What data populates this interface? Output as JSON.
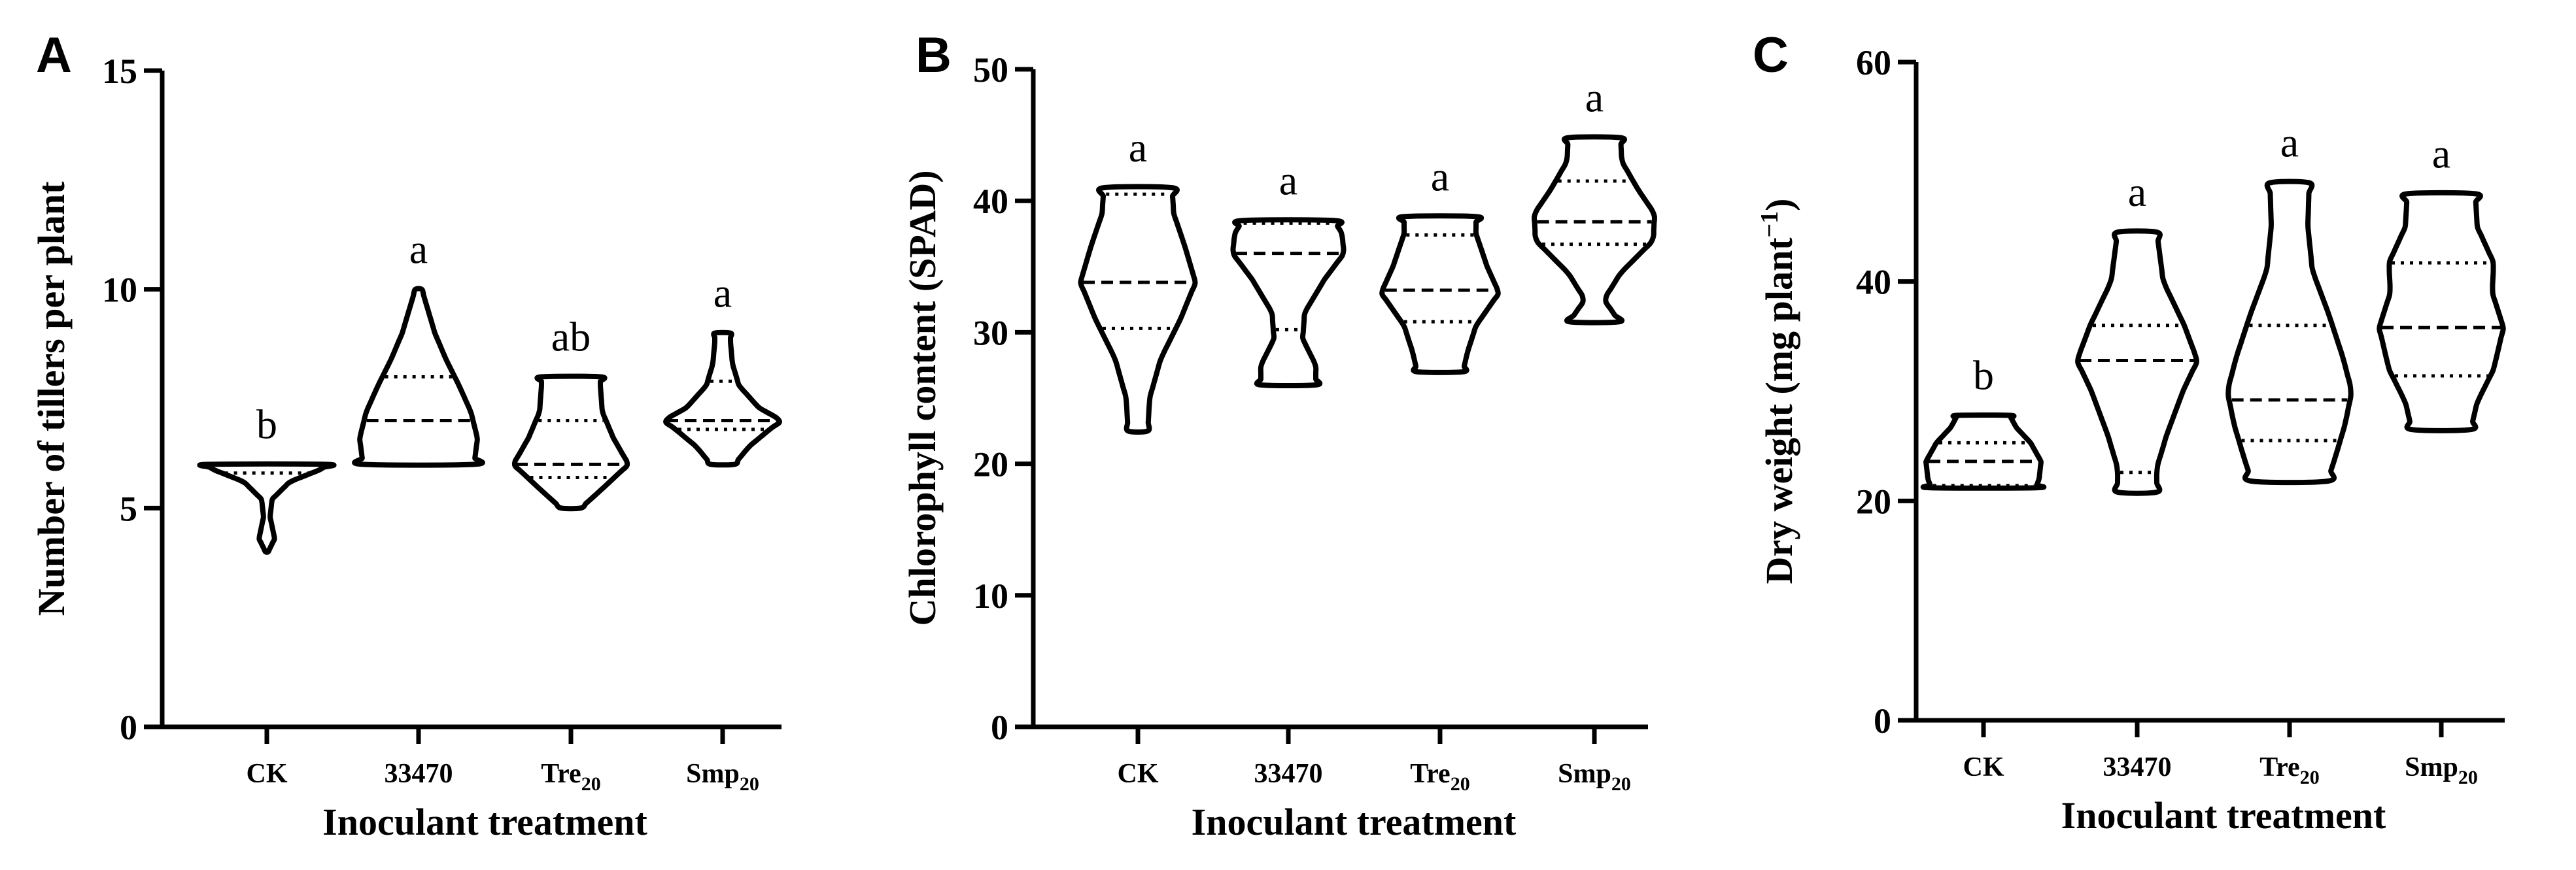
{
  "chart_data": [
    {
      "type": "violin",
      "panel": "A",
      "xlabel": "Inoculant treatment",
      "ylabel": "Number of tillers per plant",
      "ylim": [
        0,
        15
      ],
      "yticks": [
        "0",
        "5",
        "10",
        "15"
      ],
      "categories": [
        {
          "base": "CK",
          "sub": ""
        },
        {
          "base": "33470",
          "sub": ""
        },
        {
          "base": "Tre",
          "sub": "20"
        },
        {
          "base": "Smp",
          "sub": "20"
        }
      ],
      "violins": [
        {
          "min": 4,
          "max": 6,
          "q1": 5.8,
          "median": 6,
          "q3": 6,
          "sig": "b",
          "profile": [
            [
              4,
              0.02
            ],
            [
              4.3,
              0.12
            ],
            [
              4.8,
              0.05
            ],
            [
              5.2,
              0.08
            ],
            [
              5.6,
              0.35
            ],
            [
              5.9,
              0.85
            ],
            [
              6,
              0.9
            ]
          ]
        },
        {
          "min": 6,
          "max": 10,
          "q1": 6,
          "median": 7,
          "q3": 8,
          "sig": "a",
          "profile": [
            [
              6,
              0.85
            ],
            [
              6.6,
              0.9
            ],
            [
              7.2,
              0.8
            ],
            [
              7.8,
              0.62
            ],
            [
              8.4,
              0.42
            ],
            [
              9,
              0.25
            ],
            [
              9.5,
              0.15
            ],
            [
              10,
              0.05
            ]
          ]
        },
        {
          "min": 5,
          "max": 8,
          "q1": 5.7,
          "median": 6,
          "q3": 7,
          "sig": "ab",
          "profile": [
            [
              5,
              0.15
            ],
            [
              5.4,
              0.45
            ],
            [
              6,
              0.88
            ],
            [
              6.6,
              0.65
            ],
            [
              7.2,
              0.48
            ],
            [
              7.8,
              0.45
            ],
            [
              8,
              0.45
            ]
          ]
        },
        {
          "min": 6,
          "max": 9,
          "q1": 6.8,
          "median": 7,
          "q3": 7.9,
          "sig": "a",
          "profile": [
            [
              6,
              0.18
            ],
            [
              6.4,
              0.4
            ],
            [
              6.8,
              0.72
            ],
            [
              7,
              0.9
            ],
            [
              7.3,
              0.55
            ],
            [
              7.8,
              0.25
            ],
            [
              8.3,
              0.15
            ],
            [
              8.8,
              0.12
            ],
            [
              9,
              0.12
            ]
          ]
        }
      ]
    },
    {
      "type": "violin",
      "panel": "B",
      "xlabel": "Inoculant treatment",
      "ylabel": "Chlorophyll content (SPAD)",
      "ylim": [
        0,
        50
      ],
      "yticks": [
        "0",
        "10",
        "20",
        "30",
        "40",
        "50"
      ],
      "categories": [
        {
          "base": "CK",
          "sub": ""
        },
        {
          "base": "33470",
          "sub": ""
        },
        {
          "base": "Tre",
          "sub": "20"
        },
        {
          "base": "Smp",
          "sub": "20"
        }
      ],
      "violins": [
        {
          "min": 22.5,
          "max": 41,
          "q1": 30.3,
          "median": 33.8,
          "q3": 40.5,
          "sig": "a",
          "profile": [
            [
              22.5,
              0.15
            ],
            [
              25,
              0.18
            ],
            [
              28,
              0.35
            ],
            [
              31,
              0.65
            ],
            [
              33.8,
              0.88
            ],
            [
              36.5,
              0.72
            ],
            [
              39,
              0.55
            ],
            [
              41,
              0.52
            ]
          ]
        },
        {
          "min": 26,
          "max": 38.5,
          "q1": 30.2,
          "median": 36,
          "q3": 38.3,
          "sig": "a",
          "profile": [
            [
              26,
              0.42
            ],
            [
              27.5,
              0.42
            ],
            [
              29.5,
              0.22
            ],
            [
              31.5,
              0.25
            ],
            [
              34,
              0.55
            ],
            [
              36,
              0.85
            ],
            [
              37.5,
              0.82
            ],
            [
              38.5,
              0.7
            ]
          ]
        },
        {
          "min": 27,
          "max": 38.8,
          "q1": 30.8,
          "median": 33.2,
          "q3": 37.4,
          "sig": "a",
          "profile": [
            [
              27,
              0.35
            ],
            [
              28.5,
              0.42
            ],
            [
              30.5,
              0.55
            ],
            [
              33,
              0.9
            ],
            [
              35,
              0.72
            ],
            [
              37.5,
              0.55
            ],
            [
              38.8,
              0.55
            ]
          ]
        },
        {
          "min": 30.8,
          "max": 44.8,
          "q1": 36.7,
          "median": 38.4,
          "q3": 41.5,
          "sig": "a",
          "profile": [
            [
              30.8,
              0.38
            ],
            [
              32.5,
              0.15
            ],
            [
              34.5,
              0.4
            ],
            [
              37,
              0.9
            ],
            [
              39,
              0.92
            ],
            [
              41,
              0.65
            ],
            [
              43,
              0.42
            ],
            [
              44.8,
              0.4
            ]
          ]
        }
      ]
    },
    {
      "type": "violin",
      "panel": "C",
      "xlabel": "Inoculant treatment",
      "ylabel": "Dry weight (mg plant",
      "ylabel_sup": "−1",
      "ylabel_suffix": ")",
      "ylim": [
        0,
        60
      ],
      "yticks": [
        "0",
        "20",
        "40",
        "60"
      ],
      "categories": [
        {
          "base": "CK",
          "sub": ""
        },
        {
          "base": "33470",
          "sub": ""
        },
        {
          "base": "Tre",
          "sub": "20"
        },
        {
          "base": "Smp",
          "sub": "20"
        }
      ],
      "violins": [
        {
          "min": 21.2,
          "max": 27.8,
          "q1": 21.4,
          "median": 23.6,
          "q3": 25.3,
          "sig": "b",
          "profile": [
            [
              21.2,
              0.8
            ],
            [
              22,
              0.85
            ],
            [
              23.6,
              0.88
            ],
            [
              25.3,
              0.72
            ],
            [
              26.7,
              0.5
            ],
            [
              27.8,
              0.4
            ]
          ]
        },
        {
          "min": 20.8,
          "max": 44.5,
          "q1": 22.6,
          "median": 32.8,
          "q3": 36,
          "sig": "a",
          "profile": [
            [
              20.8,
              0.3
            ],
            [
              23,
              0.3
            ],
            [
              26,
              0.45
            ],
            [
              30,
              0.7
            ],
            [
              32.8,
              0.92
            ],
            [
              36,
              0.72
            ],
            [
              40,
              0.4
            ],
            [
              44.5,
              0.3
            ]
          ]
        },
        {
          "min": 21.8,
          "max": 49,
          "q1": 25.5,
          "median": 29.2,
          "q3": 36,
          "sig": "a",
          "profile": [
            [
              21.8,
              0.58
            ],
            [
              24,
              0.7
            ],
            [
              27,
              0.85
            ],
            [
              30,
              0.95
            ],
            [
              33,
              0.82
            ],
            [
              37,
              0.6
            ],
            [
              41,
              0.35
            ],
            [
              45,
              0.28
            ],
            [
              49,
              0.3
            ]
          ]
        },
        {
          "min": 26.5,
          "max": 48,
          "q1": 31.4,
          "median": 35.8,
          "q3": 41.7,
          "sig": "a",
          "profile": [
            [
              26.5,
              0.45
            ],
            [
              29,
              0.55
            ],
            [
              32,
              0.8
            ],
            [
              35.8,
              0.95
            ],
            [
              39,
              0.78
            ],
            [
              41.7,
              0.8
            ],
            [
              45,
              0.55
            ],
            [
              48,
              0.52
            ]
          ]
        }
      ]
    }
  ]
}
